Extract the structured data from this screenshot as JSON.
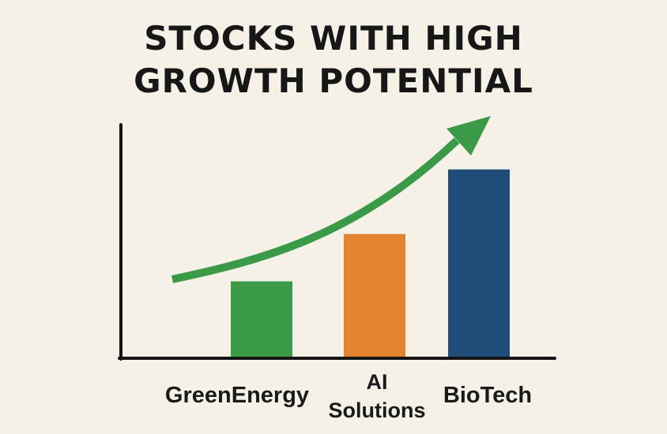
{
  "title_lines": [
    "STOCKS WITH HIGH",
    "GROWTH POTENTIAL"
  ],
  "chart_data": {
    "type": "bar",
    "title": "STOCKS WITH HIGH GROWTH POTENTIAL",
    "categories": [
      "GreenEnergy",
      "AI Solutions",
      "BioTech"
    ],
    "category_label_lines": [
      [
        "GreenEnergy"
      ],
      [
        "AI",
        "Solutions"
      ],
      [
        "BioTech"
      ]
    ],
    "values": [
      35,
      57,
      87
    ],
    "ylim": [
      0,
      110
    ],
    "xlabel": "",
    "ylabel": "",
    "grid": false,
    "legend": "none",
    "trend_arrow": true,
    "colors": {
      "bars": [
        "#3a9a47",
        "#e3832f",
        "#1f4d77"
      ],
      "arrow": "#3a9a47",
      "axis": "#141414",
      "background": "#f5f1e6"
    }
  }
}
